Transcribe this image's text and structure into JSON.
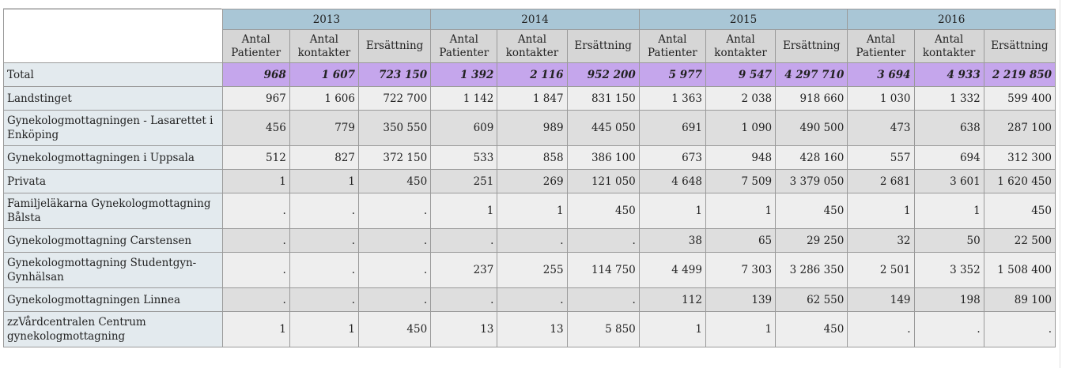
{
  "chart_data": {
    "type": "table",
    "years": [
      "2013",
      "2014",
      "2015",
      "2016"
    ],
    "measures": [
      "Antal Patienter",
      "Antal kontakter",
      "Ersättning"
    ],
    "measure_lines": [
      [
        "Antal",
        "Patienter"
      ],
      [
        "Antal",
        "kontakter"
      ],
      [
        "Ersättning"
      ]
    ],
    "rows": [
      {
        "label": "Total",
        "level": 0,
        "kind": "total",
        "values": [
          "968",
          "1 607",
          "723 150",
          "1 392",
          "2 116",
          "952 200",
          "5 977",
          "9 547",
          "4 297 710",
          "3 694",
          "4 933",
          "2 219 850"
        ]
      },
      {
        "label": "Landstinget",
        "level": 0,
        "kind": "group",
        "values": [
          "967",
          "1 606",
          "722 700",
          "1 142",
          "1 847",
          "831 150",
          "1 363",
          "2 038",
          "918 660",
          "1 030",
          "1 332",
          "599 400"
        ]
      },
      {
        "label": "Gynekologmottagningen - Lasarettet i Enköping",
        "level": 1,
        "kind": "item",
        "values": [
          "456",
          "779",
          "350 550",
          "609",
          "989",
          "445 050",
          "691",
          "1 090",
          "490 500",
          "473",
          "638",
          "287 100"
        ]
      },
      {
        "label": "Gynekologmottagningen i Uppsala",
        "level": 1,
        "kind": "item",
        "values": [
          "512",
          "827",
          "372 150",
          "533",
          "858",
          "386 100",
          "673",
          "948",
          "428 160",
          "557",
          "694",
          "312 300"
        ]
      },
      {
        "label": "Privata",
        "level": 0,
        "kind": "group",
        "values": [
          "1",
          "1",
          "450",
          "251",
          "269",
          "121 050",
          "4 648",
          "7 509",
          "3 379 050",
          "2 681",
          "3 601",
          "1 620 450"
        ]
      },
      {
        "label": "Familjeläkarna Gynekologmottagning Bålsta",
        "level": 1,
        "kind": "item",
        "values": [
          ".",
          ".",
          ".",
          "1",
          "1",
          "450",
          "1",
          "1",
          "450",
          "1",
          "1",
          "450"
        ]
      },
      {
        "label": "Gynekologmottagning Carstensen",
        "level": 1,
        "kind": "item",
        "values": [
          ".",
          ".",
          ".",
          ".",
          ".",
          ".",
          "38",
          "65",
          "29 250",
          "32",
          "50",
          "22 500"
        ]
      },
      {
        "label": "Gynekologmottagning Studentgyn-Gynhälsan",
        "level": 1,
        "kind": "item",
        "values": [
          ".",
          ".",
          ".",
          "237",
          "255",
          "114 750",
          "4 499",
          "7 303",
          "3 286 350",
          "2 501",
          "3 352",
          "1 508 400"
        ]
      },
      {
        "label": "Gynekologmottagningen Linnea",
        "level": 1,
        "kind": "item",
        "values": [
          ".",
          ".",
          ".",
          ".",
          ".",
          ".",
          "112",
          "139",
          "62 550",
          "149",
          "198",
          "89 100"
        ]
      },
      {
        "label": "zzVårdcentralen Centrum gynekologmottagning",
        "level": 1,
        "kind": "item",
        "values": [
          "1",
          "1",
          "450",
          "13",
          "13",
          "5 850",
          "1",
          "1",
          "450",
          ".",
          ".",
          "."
        ]
      }
    ]
  },
  "colors": {
    "year_header": "#a9c6d6",
    "measure_header": "#d6d6d6",
    "total_row": "#c5a6ec",
    "row_label": "#e3eaee",
    "cell_light": "#eeeeee",
    "cell_dark": "#dedede",
    "border": "#9a9a9a"
  }
}
